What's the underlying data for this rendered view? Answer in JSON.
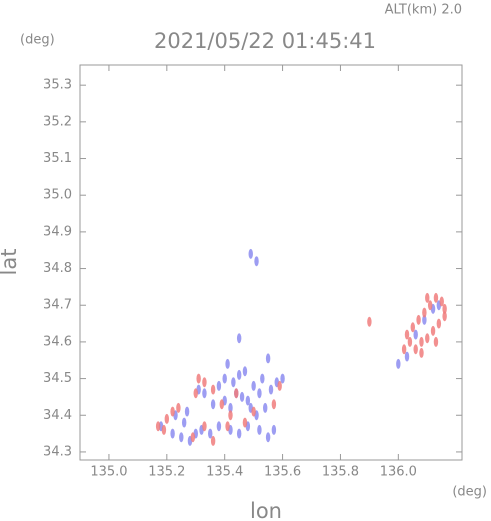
{
  "chart_data": {
    "type": "scatter",
    "title": "2021/05/22 01:45:41",
    "subtitle": "ALT(km) 2.0",
    "y_unit": "(deg)",
    "x_unit": "(deg)",
    "x_label": "lon",
    "y_label": "lat",
    "xlim": [
      134.9,
      136.22
    ],
    "ylim": [
      34.278,
      35.355
    ],
    "xticks": [
      {
        "value": 135.0,
        "label": "135.0"
      },
      135.2,
      135.4,
      135.6,
      135.8,
      {
        "value": 136.0,
        "label": "136.0"
      }
    ],
    "yticks": [
      34.3,
      34.4,
      34.5,
      34.6,
      34.7,
      34.8,
      34.9,
      {
        "value": 35.0,
        "label": "35.0"
      },
      35.1,
      35.2,
      35.3
    ],
    "series": [
      {
        "color": "#8c8cf0",
        "x": [
          135.18,
          135.22,
          135.25,
          135.28,
          135.3,
          135.26,
          135.32,
          135.35,
          135.38,
          135.42,
          135.45,
          135.48,
          135.52,
          135.55,
          135.57,
          135.36,
          135.4,
          135.42,
          135.44,
          135.46,
          135.48,
          135.5,
          135.52,
          135.54,
          135.56,
          135.58,
          135.6,
          135.38,
          135.4,
          135.43,
          135.45,
          135.41,
          135.47,
          135.53,
          135.49,
          135.51,
          135.33,
          135.31,
          135.45,
          135.55,
          135.49,
          135.51,
          136.03,
          136.06,
          136.09,
          136.12,
          136.14,
          136.0,
          135.23,
          135.27
        ],
        "y": [
          34.37,
          34.35,
          34.34,
          34.33,
          34.35,
          34.38,
          34.36,
          34.35,
          34.37,
          34.36,
          34.35,
          34.37,
          34.36,
          34.34,
          34.36,
          34.43,
          34.44,
          34.42,
          34.46,
          34.45,
          34.44,
          34.48,
          34.46,
          34.42,
          34.47,
          34.49,
          34.5,
          34.48,
          34.5,
          34.49,
          34.51,
          34.54,
          34.52,
          34.5,
          34.42,
          34.4,
          34.46,
          34.47,
          34.61,
          34.555,
          34.84,
          34.82,
          34.56,
          34.62,
          34.66,
          34.69,
          34.7,
          34.54,
          34.4,
          34.41
        ]
      },
      {
        "color": "#f07c7c",
        "x": [
          135.17,
          135.2,
          135.22,
          135.24,
          135.19,
          135.29,
          135.33,
          135.31,
          135.33,
          135.36,
          135.3,
          135.39,
          135.42,
          135.47,
          135.5,
          135.41,
          135.36,
          135.44,
          135.57,
          135.59,
          135.9,
          136.02,
          136.04,
          136.06,
          136.08,
          136.1,
          136.12,
          136.14,
          136.16,
          136.05,
          136.07,
          136.09,
          136.11,
          136.13,
          136.15,
          136.03,
          136.08,
          136.13,
          136.16,
          136.1
        ],
        "y": [
          34.37,
          34.39,
          34.41,
          34.42,
          34.36,
          34.34,
          34.37,
          34.5,
          34.49,
          34.47,
          34.46,
          34.43,
          34.4,
          34.38,
          34.41,
          34.37,
          34.33,
          34.46,
          34.43,
          34.48,
          34.655,
          34.58,
          34.6,
          34.58,
          34.6,
          34.61,
          34.63,
          34.65,
          34.67,
          34.64,
          34.66,
          34.68,
          34.7,
          34.72,
          34.71,
          34.62,
          34.57,
          34.6,
          34.69,
          34.72
        ]
      }
    ]
  }
}
